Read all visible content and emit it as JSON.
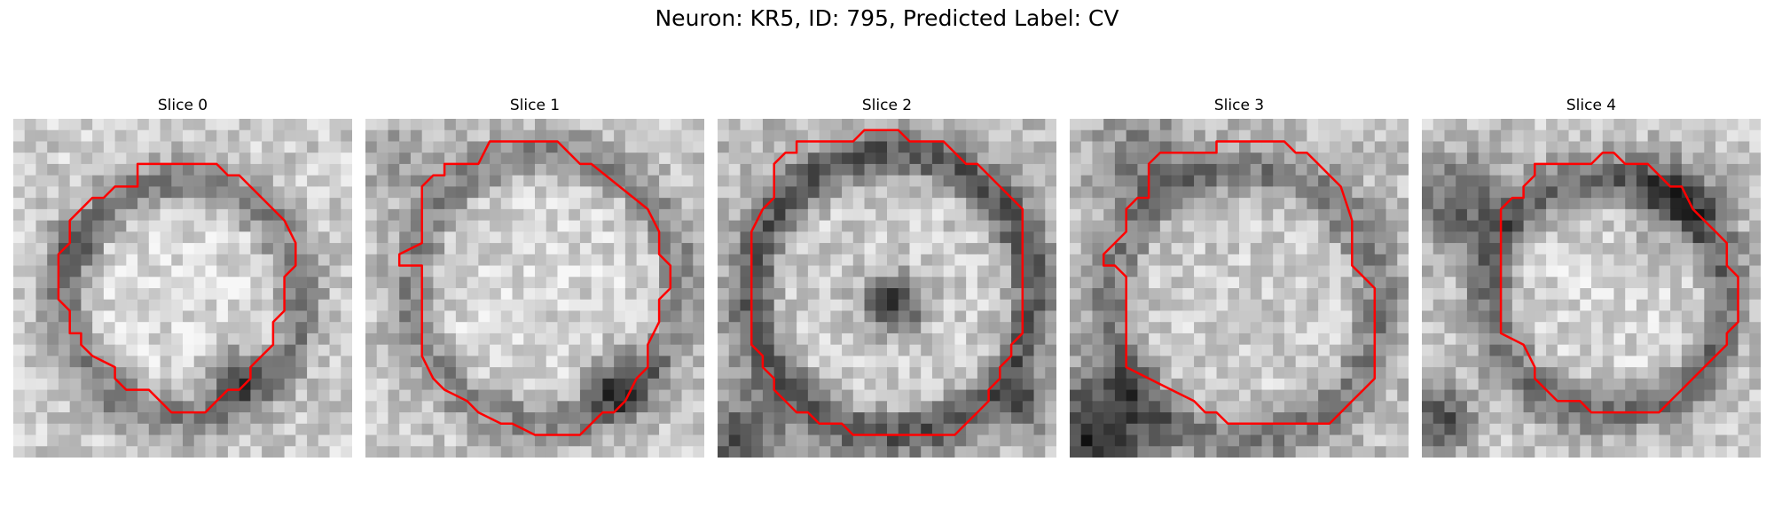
{
  "figure": {
    "title": "Neuron: KR5, ID: 795, Predicted Label: CV"
  },
  "panels": [
    {
      "title": "Slice 0"
    },
    {
      "title": "Slice 1"
    },
    {
      "title": "Slice 2"
    },
    {
      "title": "Slice 3"
    },
    {
      "title": "Slice 4"
    }
  ],
  "colors": {
    "contour": "#ff0000",
    "background": "#ffffff"
  }
}
